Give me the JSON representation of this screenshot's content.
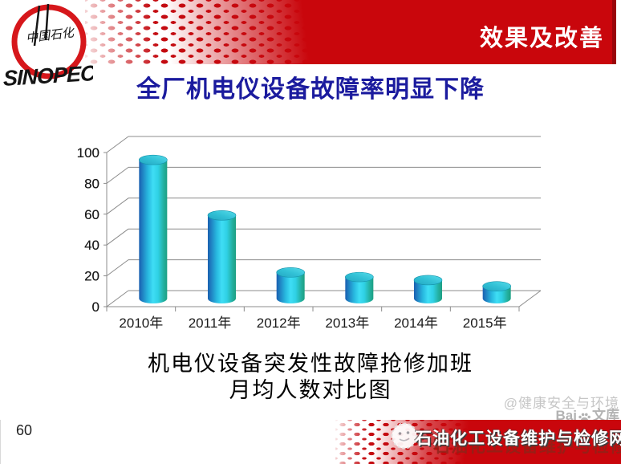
{
  "slide": {
    "header_label": "效果及改善",
    "title": "全厂机电仪设备故障率明显下降",
    "caption_line1": "机电仪设备突发性故障抢修加班",
    "caption_line2": "月均人数对比图",
    "page_number": "60"
  },
  "brand": {
    "logo_cn": "中国石化",
    "logo_en": "SINOPEC"
  },
  "colors": {
    "accent_red": "#c9060c",
    "accent_red_dark": "#9a050a",
    "title_blue": "#1b1b9e",
    "gridline_gray": "#8c8c8c",
    "watermark_gray": "#c6c6c6",
    "cylinder_left_blue": "#1a5fb0",
    "cylinder_mid_cyan": "#3fdef5",
    "cylinder_right_teal": "#1e9f82"
  },
  "chart_data": {
    "type": "bar",
    "subtype": "3d-cylinder",
    "title": "机电仪设备突发性故障抢修加班月均人数对比图",
    "categories": [
      "2010年",
      "2011年",
      "2012年",
      "2013年",
      "2014年",
      "2015年"
    ],
    "values": [
      90,
      54,
      17,
      14,
      12,
      8
    ],
    "xlabel": "",
    "ylabel": "",
    "ylim": [
      0,
      100
    ],
    "yticks": [
      0,
      20,
      40,
      60,
      80,
      100
    ],
    "grid": true,
    "legend_position": "none"
  },
  "watermarks": {
    "hse": "@健康安全与环境",
    "wenku_prefix": "Bai",
    "wenku_suffix": "文库",
    "banner_text": "石油化工设备维护与检修网"
  }
}
